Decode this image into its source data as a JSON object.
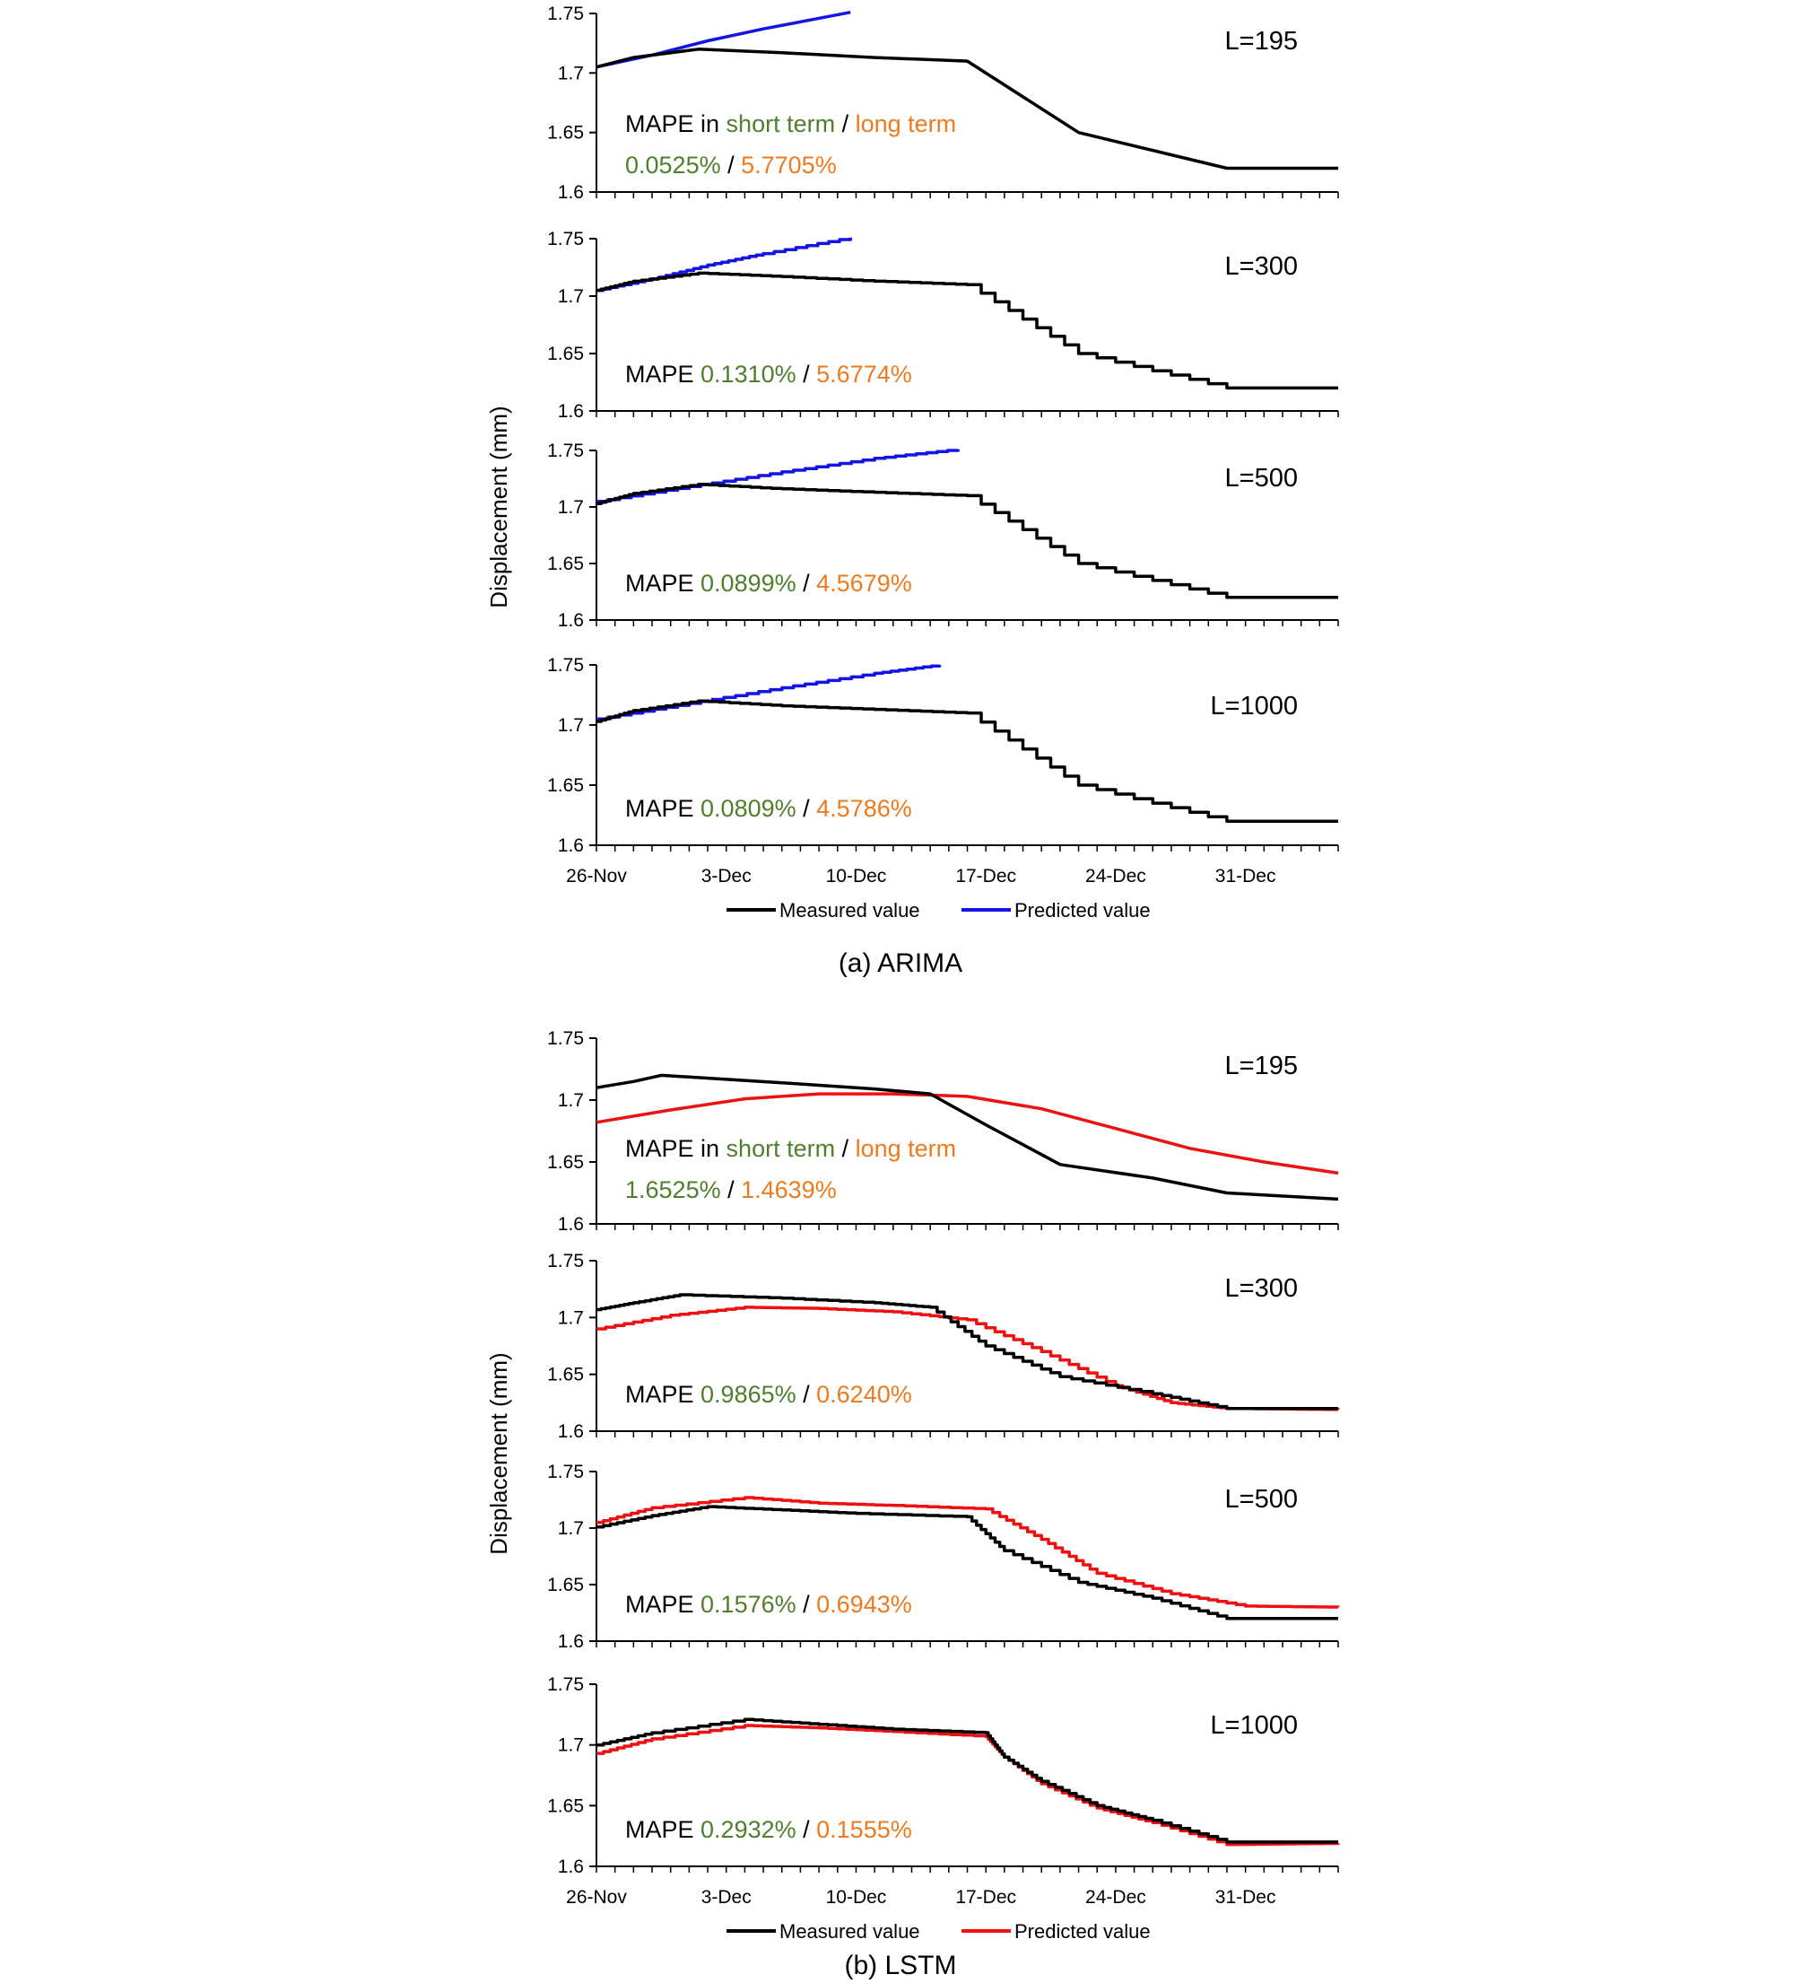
{
  "colors": {
    "measured": "#000000",
    "arima_predicted": "#1414e6",
    "lstm_predicted": "#ee1111",
    "short_term": "#4f7f2c",
    "long_term": "#ee7a1e",
    "label_text": "#000000"
  },
  "figures": [
    {
      "caption": "(a)  ARIMA",
      "ylabel": "Displacement (mm)",
      "legend": {
        "measured": "Measured value",
        "predicted": "Predicted value"
      }
    },
    {
      "caption": "(b)  LSTM",
      "ylabel": "Displacement (mm)",
      "legend": {
        "measured": "Measured value",
        "predicted": "Predicted value"
      }
    }
  ],
  "chart_data": [
    {
      "type": "line",
      "model": "ARIMA",
      "x_unit": "days since 26-Nov",
      "xlim": [
        0,
        40
      ],
      "x_ticks": [
        0,
        7,
        14,
        21,
        28,
        35
      ],
      "x_tick_labels": [
        "26-Nov",
        "3-Dec",
        "10-Dec",
        "17-Dec",
        "24-Dec",
        "31-Dec"
      ],
      "ylim": [
        1.6,
        1.75
      ],
      "y_ticks": [
        1.6,
        1.65,
        1.7,
        1.75
      ],
      "y_tick_labels": [
        "1.6",
        "1.65",
        "1.7",
        "1.75"
      ],
      "panels": [
        {
          "label": "L=195",
          "mape_prefix": "MAPE in ",
          "mape_short_label": "short term",
          "mape_sep1": " / ",
          "mape_long_label": "long term",
          "mape_short_value": "0.0525%",
          "mape_sep2": " / ",
          "mape_long_value": "5.7705%",
          "stepped": false,
          "measured": {
            "x": [
              0,
              2,
              5.5,
              10,
              15,
              20,
              26,
              34,
              40
            ],
            "y": [
              1.705,
              1.713,
              1.72,
              1.717,
              1.713,
              1.71,
              1.65,
              1.62,
              1.62
            ]
          },
          "predicted": {
            "x": [
              0,
              3,
              6,
              9,
              13.7
            ],
            "y": [
              1.705,
              1.715,
              1.727,
              1.737,
              1.751
            ]
          }
        },
        {
          "label": "L=300",
          "mape_prefix": "MAPE ",
          "mape_short_value": "0.1310%",
          "mape_sep2": " / ",
          "mape_long_value": "5.6774%",
          "stepped": true,
          "measured": {
            "x": [
              0,
              2,
              5.5,
              10,
              15,
              20,
              26,
              34,
              40
            ],
            "y": [
              1.705,
              1.713,
              1.72,
              1.717,
              1.713,
              1.71,
              1.65,
              1.62,
              1.62
            ]
          },
          "predicted": {
            "x": [
              0,
              3,
              6,
              9,
              13.7
            ],
            "y": [
              1.705,
              1.715,
              1.727,
              1.737,
              1.751
            ]
          }
        },
        {
          "label": "L=500",
          "mape_prefix": "MAPE ",
          "mape_short_value": "0.0899%",
          "mape_sep2": " / ",
          "mape_long_value": "4.5679%",
          "stepped": true,
          "measured": {
            "x": [
              0,
              2,
              5.5,
              10,
              15,
              20,
              26,
              34,
              40
            ],
            "y": [
              1.703,
              1.712,
              1.72,
              1.716,
              1.713,
              1.71,
              1.65,
              1.62,
              1.62
            ]
          },
          "predicted": {
            "x": [
              0,
              5,
              10,
              15,
              19.5
            ],
            "y": [
              1.705,
              1.718,
              1.731,
              1.743,
              1.751
            ]
          }
        },
        {
          "label": "L=1000",
          "mape_prefix": "MAPE ",
          "mape_short_value": "0.0809%",
          "mape_sep2": " / ",
          "mape_long_value": "4.5786%",
          "stepped": true,
          "measured": {
            "x": [
              0,
              2,
              5.5,
              10,
              15,
              20,
              26,
              34,
              40
            ],
            "y": [
              1.703,
              1.712,
              1.72,
              1.716,
              1.713,
              1.71,
              1.65,
              1.62,
              1.62
            ]
          },
          "predicted": {
            "x": [
              0,
              5,
              10,
              15,
              18.5
            ],
            "y": [
              1.705,
              1.718,
              1.731,
              1.743,
              1.75
            ]
          }
        }
      ]
    },
    {
      "type": "line",
      "model": "LSTM",
      "x_unit": "days since 26-Nov",
      "xlim": [
        0,
        40
      ],
      "x_ticks": [
        0,
        7,
        14,
        21,
        28,
        35
      ],
      "x_tick_labels": [
        "26-Nov",
        "3-Dec",
        "10-Dec",
        "17-Dec",
        "24-Dec",
        "31-Dec"
      ],
      "ylim": [
        1.6,
        1.75
      ],
      "y_ticks": [
        1.6,
        1.65,
        1.7,
        1.75
      ],
      "y_tick_labels": [
        "1.6",
        "1.65",
        "1.7",
        "1.75"
      ],
      "panels": [
        {
          "label": "L=195",
          "mape_prefix": "MAPE in ",
          "mape_short_label": "short term",
          "mape_sep1": " / ",
          "mape_long_label": "long term",
          "mape_short_value": "1.6525%",
          "mape_sep2": " / ",
          "mape_long_value": "1.4639%",
          "stepped": false,
          "measured": {
            "x": [
              0,
              2,
              3.5,
              10,
              15,
              18,
              21,
              25,
              30,
              34,
              40
            ],
            "y": [
              1.71,
              1.715,
              1.72,
              1.714,
              1.709,
              1.705,
              1.68,
              1.648,
              1.637,
              1.625,
              1.62
            ]
          },
          "predicted": {
            "x": [
              0,
              4,
              8,
              12,
              16,
              20,
              24,
              28,
              32,
              36,
              40
            ],
            "y": [
              1.682,
              1.692,
              1.701,
              1.705,
              1.705,
              1.703,
              1.693,
              1.677,
              1.661,
              1.65,
              1.641
            ]
          }
        },
        {
          "label": "L=300",
          "mape_prefix": "MAPE ",
          "mape_short_value": "0.9865%",
          "mape_sep2": " / ",
          "mape_long_value": "0.6240%",
          "stepped": true,
          "measured": {
            "x": [
              0,
              2,
              4.5,
              10,
              15,
              18,
              21,
              25,
              30,
              34,
              40
            ],
            "y": [
              1.707,
              1.713,
              1.72,
              1.717,
              1.713,
              1.709,
              1.675,
              1.648,
              1.633,
              1.62,
              1.62
            ]
          },
          "predicted": {
            "x": [
              0,
              4,
              8,
              12,
              16,
              20,
              24,
              28,
              31,
              34,
              40
            ],
            "y": [
              1.69,
              1.702,
              1.709,
              1.708,
              1.705,
              1.698,
              1.67,
              1.64,
              1.625,
              1.62,
              1.619
            ]
          }
        },
        {
          "label": "L=500",
          "mape_prefix": "MAPE ",
          "mape_short_value": "0.1576%",
          "mape_sep2": " / ",
          "mape_long_value": "0.6943%",
          "stepped": true,
          "measured": {
            "x": [
              0,
              3,
              6,
              10,
              14,
              20,
              22,
              26,
              30,
              34,
              40
            ],
            "y": [
              1.701,
              1.711,
              1.719,
              1.716,
              1.713,
              1.71,
              1.68,
              1.652,
              1.638,
              1.62,
              1.62
            ]
          },
          "predicted": {
            "x": [
              0,
              3,
              8,
              12,
              16,
              21,
              24,
              27,
              31,
              35,
              40
            ],
            "y": [
              1.705,
              1.718,
              1.727,
              1.722,
              1.72,
              1.717,
              1.69,
              1.66,
              1.642,
              1.631,
              1.63
            ]
          }
        },
        {
          "label": "L=1000",
          "mape_prefix": "MAPE ",
          "mape_short_value": "0.2932%",
          "mape_sep2": " / ",
          "mape_long_value": "0.1555%",
          "stepped": true,
          "measured": {
            "x": [
              0,
              3,
              8,
              12,
              16,
              21,
              22,
              24,
              27,
              30,
              34,
              40
            ],
            "y": [
              1.7,
              1.71,
              1.721,
              1.717,
              1.713,
              1.71,
              1.69,
              1.67,
              1.65,
              1.638,
              1.62,
              1.62
            ]
          },
          "predicted": {
            "x": [
              0,
              3,
              8,
              12,
              16,
              21,
              22,
              24,
              27,
              30,
              34,
              40
            ],
            "y": [
              1.693,
              1.705,
              1.716,
              1.714,
              1.711,
              1.707,
              1.69,
              1.668,
              1.648,
              1.636,
              1.618,
              1.619
            ]
          }
        }
      ]
    }
  ]
}
